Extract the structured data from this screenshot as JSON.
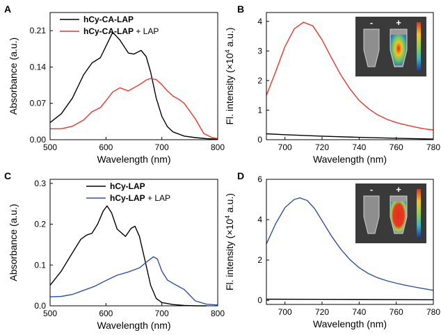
{
  "chart_data": [
    {
      "panel": "A",
      "type": "line",
      "xlabel": "Wavelength (nm)",
      "ylabel": "Absorbance (a.u.)",
      "xlim": [
        500,
        800
      ],
      "ylim": [
        0,
        0.245
      ],
      "xticks": [
        500,
        600,
        700,
        800
      ],
      "yticks": [
        0,
        0.07,
        0.14,
        0.21
      ],
      "ytick_labels": [
        "0.00",
        "0.07",
        "0.14",
        "0.21"
      ],
      "legend_position": "top-left",
      "series": [
        {
          "name_bold": "hCy-CA-LAP",
          "name_rest": "",
          "color": "#000000",
          "x": [
            500,
            520,
            540,
            560,
            575,
            590,
            600,
            612,
            625,
            640,
            650,
            663,
            672,
            680,
            690,
            700,
            710,
            720,
            740,
            760,
            780,
            800
          ],
          "y": [
            0.033,
            0.05,
            0.08,
            0.125,
            0.148,
            0.158,
            0.18,
            0.207,
            0.192,
            0.167,
            0.165,
            0.172,
            0.16,
            0.13,
            0.08,
            0.045,
            0.025,
            0.015,
            0.007,
            0.004,
            0.002,
            0.001
          ]
        },
        {
          "name_bold": "hCy-CA-LAP",
          "name_rest": " + LAP",
          "color": "#e8352b",
          "x": [
            500,
            520,
            540,
            560,
            575,
            590,
            600,
            612,
            625,
            640,
            650,
            663,
            672,
            680,
            690,
            700,
            710,
            720,
            730,
            740,
            760,
            775,
            790,
            800
          ],
          "y": [
            0.021,
            0.021,
            0.026,
            0.038,
            0.054,
            0.062,
            0.075,
            0.092,
            0.1,
            0.094,
            0.1,
            0.108,
            0.115,
            0.118,
            0.116,
            0.106,
            0.094,
            0.084,
            0.078,
            0.07,
            0.04,
            0.012,
            0.004,
            0.002
          ]
        }
      ]
    },
    {
      "panel": "B",
      "type": "line",
      "xlabel": "Wavelength (nm)",
      "ylabel_pre": "Fl. intensity (×10",
      "ylabel_sup": "4",
      "ylabel_post": " a.u.)",
      "xlim": [
        690,
        780
      ],
      "ylim": [
        0,
        4.3
      ],
      "xticks": [
        700,
        720,
        740,
        760,
        780
      ],
      "yticks": [
        0,
        1,
        2,
        3,
        4
      ],
      "inset_labels": [
        "-",
        "+"
      ],
      "series": [
        {
          "color": "#e8352b",
          "x": [
            690,
            695,
            700,
            705,
            710,
            715,
            720,
            725,
            730,
            735,
            740,
            745,
            750,
            755,
            760,
            765,
            770,
            775,
            780
          ],
          "y": [
            1.5,
            2.3,
            3.15,
            3.75,
            3.97,
            3.85,
            3.38,
            2.78,
            2.2,
            1.72,
            1.33,
            1.05,
            0.84,
            0.69,
            0.58,
            0.5,
            0.43,
            0.37,
            0.33
          ]
        },
        {
          "color": "#000000",
          "x": [
            690,
            700,
            720,
            740,
            760,
            780
          ],
          "y": [
            0.2,
            0.17,
            0.12,
            0.08,
            0.05,
            0.02
          ]
        }
      ]
    },
    {
      "panel": "C",
      "type": "line",
      "xlabel": "Wavelength (nm)",
      "ylabel": "Absorbance (a.u.)",
      "xlim": [
        500,
        800
      ],
      "ylim": [
        0,
        0.31
      ],
      "xticks": [
        500,
        600,
        700,
        800
      ],
      "yticks": [
        0,
        0.1,
        0.2,
        0.3
      ],
      "ytick_labels": [
        "0.0",
        "0.1",
        "0.2",
        "0.3"
      ],
      "legend_position": "top-right",
      "series": [
        {
          "name_bold": "hCy-LAP",
          "name_rest": "",
          "color": "#000000",
          "x": [
            500,
            520,
            540,
            555,
            565,
            575,
            585,
            595,
            602,
            610,
            620,
            635,
            645,
            652,
            660,
            670,
            680,
            690,
            700,
            720,
            740,
            760,
            780
          ],
          "y": [
            0.05,
            0.085,
            0.13,
            0.163,
            0.173,
            0.178,
            0.2,
            0.232,
            0.245,
            0.228,
            0.188,
            0.17,
            0.19,
            0.195,
            0.17,
            0.11,
            0.05,
            0.018,
            0.008,
            0.003,
            0.001,
            0,
            0
          ]
        },
        {
          "name_bold": "hCy-LAP",
          "name_rest": " + LAP",
          "color": "#2f52a0",
          "x": [
            500,
            520,
            540,
            560,
            580,
            600,
            620,
            640,
            660,
            675,
            685,
            692,
            700,
            710,
            720,
            740,
            760,
            780,
            800
          ],
          "y": [
            0.022,
            0.023,
            0.028,
            0.038,
            0.048,
            0.062,
            0.075,
            0.083,
            0.093,
            0.11,
            0.12,
            0.115,
            0.085,
            0.063,
            0.055,
            0.04,
            0.012,
            0.004,
            0.002
          ]
        }
      ]
    },
    {
      "panel": "D",
      "type": "line",
      "xlabel": "Wavelength (nm)",
      "ylabel_pre": "Fl. intensity (×10",
      "ylabel_sup": "4",
      "ylabel_post": " a.u.)",
      "xlim": [
        690,
        780
      ],
      "ylim": [
        -0.2,
        6.0
      ],
      "xticks": [
        700,
        720,
        740,
        760,
        780
      ],
      "yticks": [
        0,
        2,
        4,
        6
      ],
      "inset_labels": [
        "-",
        "+"
      ],
      "series": [
        {
          "color": "#2f52a0",
          "x": [
            690,
            695,
            700,
            705,
            708,
            712,
            716,
            720,
            725,
            730,
            735,
            740,
            745,
            750,
            755,
            760,
            765,
            770,
            775,
            780
          ],
          "y": [
            2.8,
            3.8,
            4.6,
            5.0,
            5.08,
            4.95,
            4.55,
            3.95,
            3.2,
            2.55,
            2.02,
            1.62,
            1.33,
            1.12,
            0.97,
            0.85,
            0.75,
            0.66,
            0.58,
            0.5
          ]
        },
        {
          "color": "#000000",
          "x": [
            690,
            720,
            750,
            780
          ],
          "y": [
            0.06,
            0.05,
            0.04,
            0.03
          ]
        }
      ]
    }
  ]
}
